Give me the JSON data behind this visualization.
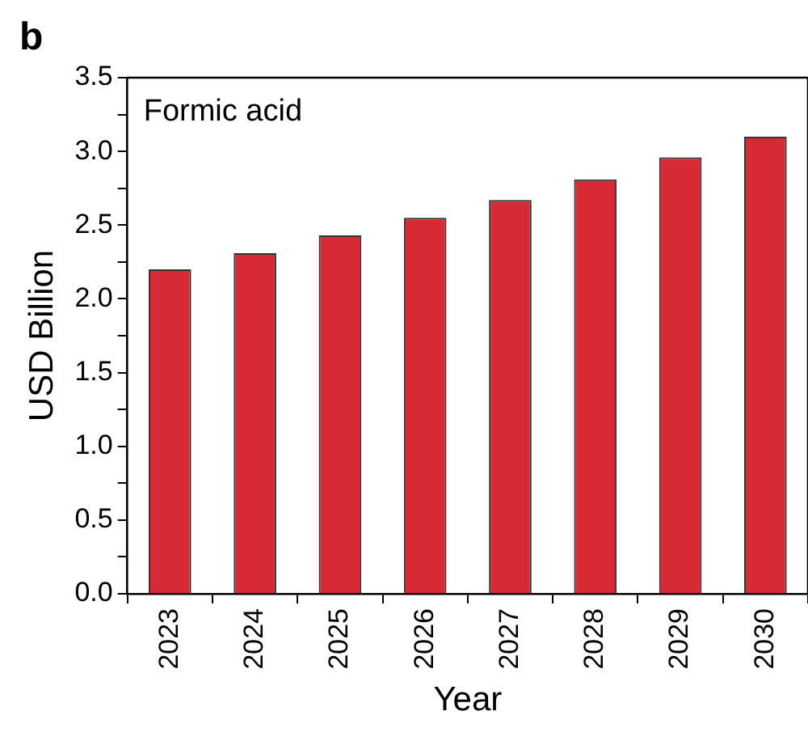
{
  "chart_data": {
    "type": "bar",
    "xlabel": "Year",
    "ylabel": "USD Billion",
    "annotations": [
      "b",
      "Formic acid"
    ],
    "categories": [
      "2023",
      "2024",
      "2025",
      "2026",
      "2027",
      "2028",
      "2029",
      "2030"
    ],
    "values": [
      2.2,
      2.31,
      2.43,
      2.55,
      2.67,
      2.81,
      2.96,
      3.1
    ],
    "color": "#d62a35",
    "ylim": [
      0,
      3.5
    ],
    "yticks": [
      {
        "value": 0,
        "label": "0.0"
      },
      {
        "value": 0.25,
        "label": null
      },
      {
        "value": 0.5,
        "label": "0.5"
      },
      {
        "value": 0.75,
        "label": null
      },
      {
        "value": 1,
        "label": "1.0"
      },
      {
        "value": 1.25,
        "label": null
      },
      {
        "value": 1.5,
        "label": "1.5"
      },
      {
        "value": 1.75,
        "label": null
      },
      {
        "value": 2,
        "label": "2.0"
      },
      {
        "value": 2.25,
        "label": null
      },
      {
        "value": 2.5,
        "label": "2.5"
      },
      {
        "value": 2.75,
        "label": null
      },
      {
        "value": 3,
        "label": "3.0"
      },
      {
        "value": 3.25,
        "label": null
      },
      {
        "value": 3.5,
        "label": "3.5"
      }
    ],
    "grid": false,
    "legend": false
  }
}
